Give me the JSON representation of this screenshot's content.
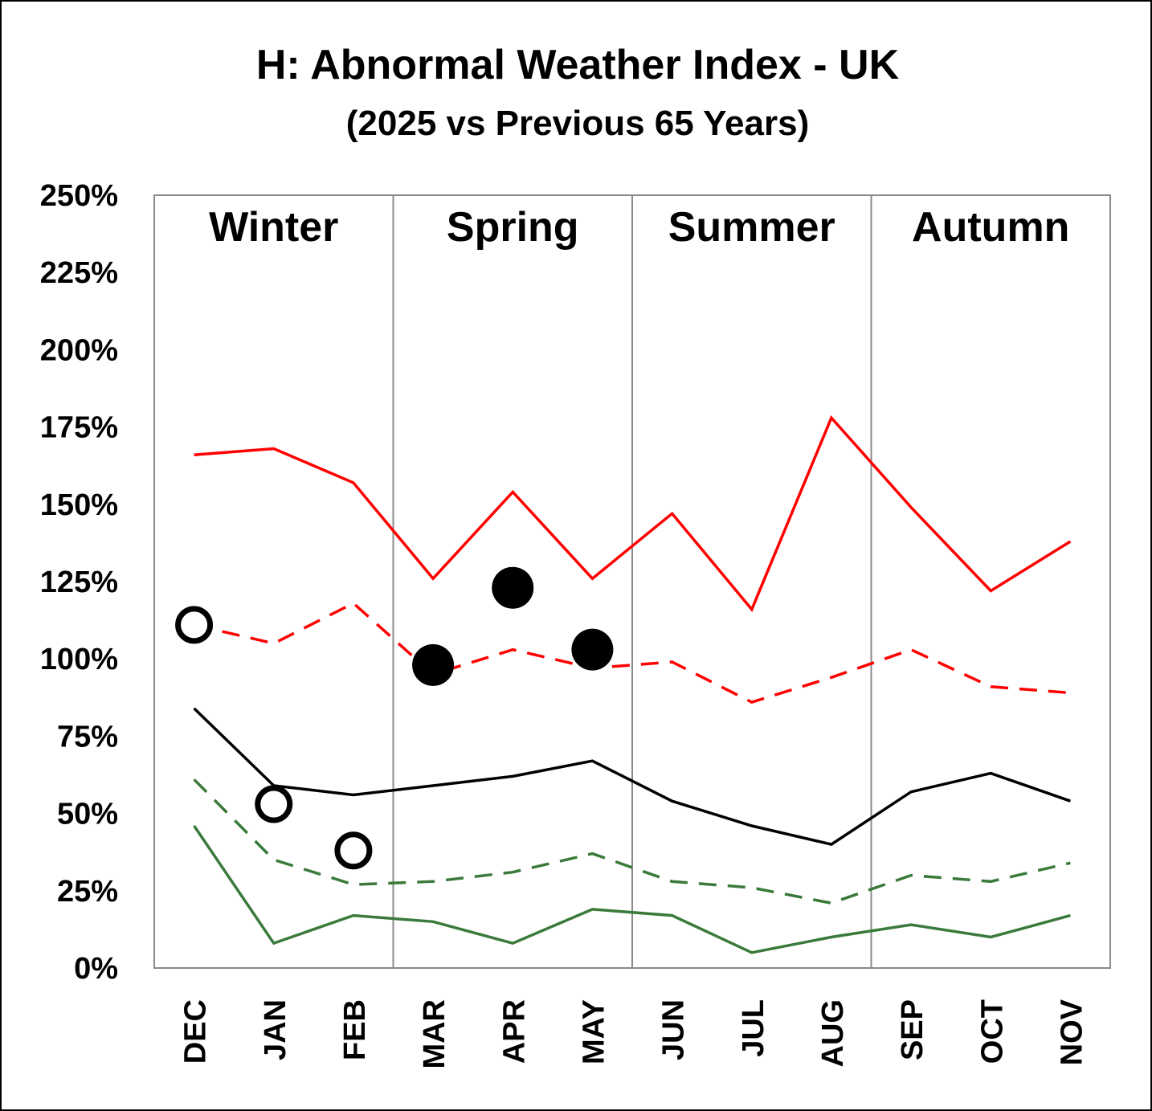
{
  "chart_data": {
    "type": "line",
    "title": "H: Abnormal Weather Index - UK",
    "subtitle": "(2025 vs Previous 65 Years)",
    "xlabel": "",
    "ylabel": "",
    "categories": [
      "DEC",
      "JAN",
      "FEB",
      "MAR",
      "APR",
      "MAY",
      "JUN",
      "JUL",
      "AUG",
      "SEP",
      "OCT",
      "NOV"
    ],
    "ylim": [
      0,
      250
    ],
    "yticks": [
      "0%",
      "25%",
      "50%",
      "75%",
      "100%",
      "125%",
      "150%",
      "175%",
      "200%",
      "225%",
      "250%"
    ],
    "seasons": [
      "Winter",
      "Spring",
      "Summer",
      "Autumn"
    ],
    "grid": false,
    "legend": "none",
    "series": [
      {
        "style": "solid",
        "color": "#ff0000",
        "values": [
          166,
          168,
          157,
          126,
          154,
          126,
          147,
          116,
          178,
          149,
          122,
          138
        ]
      },
      {
        "style": "dashed",
        "color": "#ff0000",
        "values": [
          111,
          105,
          118,
          95,
          103,
          97,
          99,
          86,
          94,
          103,
          91,
          89
        ]
      },
      {
        "style": "solid",
        "color": "#000000",
        "values": [
          84,
          59,
          56,
          59,
          62,
          67,
          54,
          46,
          40,
          57,
          63,
          54
        ]
      },
      {
        "style": "dashed",
        "color": "#3a7a3a",
        "values": [
          61,
          35,
          27,
          28,
          31,
          37,
          28,
          26,
          21,
          30,
          28,
          34
        ]
      },
      {
        "style": "solid",
        "color": "#3a7a3a",
        "values": [
          46,
          8,
          17,
          15,
          8,
          19,
          17,
          5,
          10,
          14,
          10,
          17
        ]
      },
      {
        "style": "markers",
        "color": "#000000",
        "values": [
          111,
          53,
          38,
          98,
          123,
          103,
          null,
          null,
          null,
          null,
          null,
          null
        ],
        "filled": [
          false,
          false,
          false,
          true,
          true,
          true,
          null,
          null,
          null,
          null,
          null,
          null
        ]
      }
    ]
  }
}
